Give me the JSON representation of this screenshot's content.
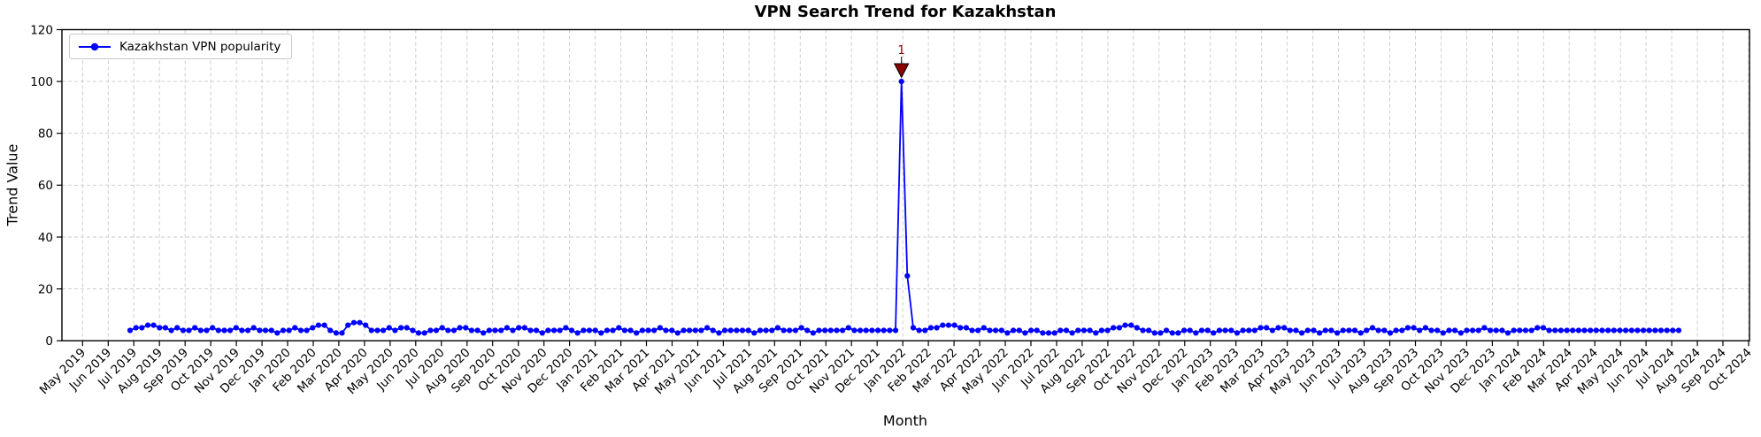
{
  "chart_data": {
    "type": "line",
    "title": "VPN Search Trend for Kazakhstan",
    "xlabel": "Month",
    "ylabel": "Trend Value",
    "grid": true,
    "legend_position": "upper left",
    "sampling": "weekly",
    "ylim": [
      0,
      120
    ],
    "y_ticks": [
      0,
      20,
      40,
      60,
      80,
      100,
      120
    ],
    "x_tick_labels": [
      "May 2019",
      "Jun 2019",
      "Jul 2019",
      "Aug 2019",
      "Sep 2019",
      "Oct 2019",
      "Nov 2019",
      "Dec 2019",
      "Jan 2020",
      "Feb 2020",
      "Mar 2020",
      "Apr 2020",
      "May 2020",
      "Jun 2020",
      "Jul 2020",
      "Aug 2020",
      "Sep 2020",
      "Oct 2020",
      "Nov 2020",
      "Dec 2020",
      "Jan 2021",
      "Feb 2021",
      "Mar 2021",
      "Apr 2021",
      "May 2021",
      "Jun 2021",
      "Jul 2021",
      "Aug 2021",
      "Sep 2021",
      "Oct 2021",
      "Nov 2021",
      "Dec 2021",
      "Jan 2022",
      "Feb 2022",
      "Mar 2022",
      "Apr 2022",
      "May 2022",
      "Jun 2022",
      "Jul 2022",
      "Aug 2022",
      "Sep 2022",
      "Oct 2022",
      "Nov 2022",
      "Dec 2022",
      "Jan 2023",
      "Feb 2023",
      "Mar 2023",
      "Apr 2023",
      "May 2023",
      "Jun 2023",
      "Jul 2023",
      "Aug 2023",
      "Sep 2023",
      "Oct 2023",
      "Nov 2023",
      "Dec 2023",
      "Jan 2024",
      "Feb 2024",
      "Mar 2024",
      "Apr 2024",
      "May 2024",
      "Jun 2024",
      "Jul 2024",
      "Aug 2024",
      "Sep 2024",
      "Oct 2024"
    ],
    "series": [
      {
        "name": "Kazakhstan VPN popularity",
        "color": "#0000FF",
        "marker": "circle",
        "values": [
          4,
          5,
          5,
          6,
          6,
          5,
          5,
          4,
          5,
          4,
          4,
          5,
          4,
          4,
          5,
          4,
          4,
          4,
          5,
          4,
          4,
          5,
          4,
          4,
          4,
          3,
          4,
          4,
          5,
          4,
          4,
          5,
          6,
          6,
          4,
          3,
          3,
          6,
          7,
          7,
          6,
          4,
          4,
          4,
          5,
          4,
          5,
          5,
          4,
          3,
          3,
          4,
          4,
          5,
          4,
          4,
          5,
          5,
          4,
          4,
          3,
          4,
          4,
          4,
          5,
          4,
          5,
          5,
          4,
          4,
          3,
          4,
          4,
          4,
          5,
          4,
          3,
          4,
          4,
          4,
          3,
          4,
          4,
          5,
          4,
          4,
          3,
          4,
          4,
          4,
          5,
          4,
          4,
          3,
          4,
          4,
          4,
          4,
          5,
          4,
          3,
          4,
          4,
          4,
          4,
          4,
          3,
          4,
          4,
          4,
          5,
          4,
          4,
          4,
          5,
          4,
          3,
          4,
          4,
          4,
          4,
          4,
          5,
          4,
          4,
          4,
          4,
          4,
          4,
          4,
          4,
          100,
          25,
          5,
          4,
          4,
          5,
          5,
          6,
          6,
          6,
          5,
          5,
          4,
          4,
          5,
          4,
          4,
          4,
          3,
          4,
          4,
          3,
          4,
          4,
          3,
          3,
          3,
          4,
          4,
          3,
          4,
          4,
          4,
          3,
          4,
          4,
          5,
          5,
          6,
          6,
          5,
          4,
          4,
          3,
          3,
          4,
          3,
          3,
          4,
          4,
          3,
          4,
          4,
          3,
          4,
          4,
          4,
          3,
          4,
          4,
          4,
          5,
          5,
          4,
          5,
          5,
          4,
          4,
          3,
          4,
          4,
          3,
          4,
          4,
          3,
          4,
          4,
          4,
          3,
          4,
          5,
          4,
          4,
          3,
          4,
          4,
          5,
          5,
          4,
          5,
          4,
          4,
          3,
          4,
          4,
          3,
          4,
          4,
          4,
          5,
          4,
          4,
          4,
          3,
          4,
          4,
          4,
          4,
          5,
          5,
          4,
          4,
          4,
          4,
          4,
          4,
          4,
          4,
          4,
          4,
          4,
          4,
          4,
          4,
          4,
          4,
          4,
          4,
          4,
          4,
          4,
          4,
          4
        ]
      }
    ],
    "annotation": {
      "text": "1",
      "color": "#8B0000",
      "point_index": 131,
      "value": 100,
      "arrow": "triangle-down"
    },
    "colors": {
      "line": "#0000FF",
      "annotation": "#8B0000",
      "grid": "#c8c8c8",
      "axis": "#000000",
      "background": "#FFFFFF"
    }
  }
}
